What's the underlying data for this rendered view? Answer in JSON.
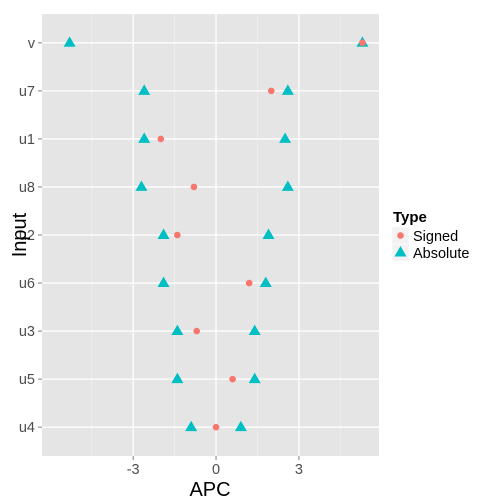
{
  "chart_data": {
    "type": "scatter",
    "title": "",
    "xlabel": "APC",
    "ylabel": "Input",
    "xlim": [
      -6.3,
      5.9
    ],
    "x_ticks": [
      -3,
      0,
      3
    ],
    "x_tick_labels": [
      "-3",
      "0",
      "3"
    ],
    "categories": [
      "v",
      "u7",
      "u1",
      "u8",
      "u2",
      "u6",
      "u3",
      "u5",
      "u4"
    ],
    "grid": true,
    "legend": {
      "title": "Type",
      "position": "right"
    },
    "series": [
      {
        "name": "Signed",
        "color": "#F8766D",
        "shape": "circle",
        "values": [
          5.3,
          2.0,
          -2.0,
          -0.8,
          -1.4,
          1.2,
          -0.7,
          0.6,
          0.0
        ]
      },
      {
        "name": "Absolute",
        "color": "#00BFC4",
        "shape": "triangle",
        "values": [
          [
            -5.3,
            5.3
          ],
          [
            -2.6,
            2.6
          ],
          [
            -2.6,
            2.5
          ],
          [
            -2.7,
            2.6
          ],
          [
            -1.9,
            1.9
          ],
          [
            -1.9,
            1.8
          ],
          [
            -1.4,
            1.4
          ],
          [
            -1.4,
            1.4
          ],
          [
            -0.9,
            0.9
          ]
        ]
      }
    ]
  }
}
